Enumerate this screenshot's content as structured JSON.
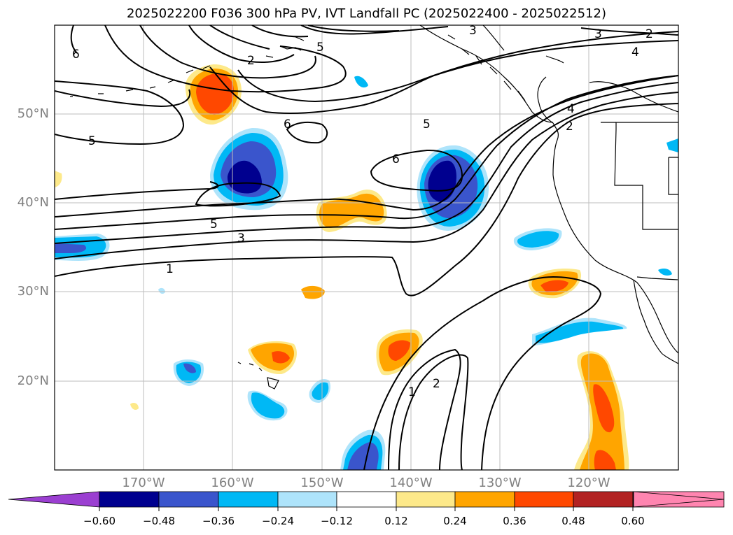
{
  "title": "2025022200 F036 300 hPa PV, IVT Landfall PC (2025022400 - 2025022512)",
  "map": {
    "lat_labels": [
      "50°N",
      "40°N",
      "30°N",
      "20°N"
    ],
    "lon_labels": [
      "170°W",
      "160°W",
      "150°W",
      "140°W",
      "130°W",
      "120°W"
    ],
    "contour_labels": [
      "6",
      "5",
      "5",
      "2",
      "3",
      "3",
      "2",
      "4",
      "6",
      "6",
      "5",
      "5",
      "3",
      "1",
      "4",
      "2",
      "1",
      "2"
    ]
  },
  "colorbar": {
    "ticks": [
      "−0.60",
      "−0.48",
      "−0.36",
      "−0.24",
      "−0.12",
      "0.12",
      "0.24",
      "0.36",
      "0.48",
      "0.60"
    ],
    "colors": [
      "#9b3fd1",
      "#00008f",
      "#3a55cc",
      "#00b8f5",
      "#aee4fb",
      "#ffffff",
      "#fde98a",
      "#ffa500",
      "#ff4800",
      "#b22222",
      "#ff85b0"
    ]
  }
}
